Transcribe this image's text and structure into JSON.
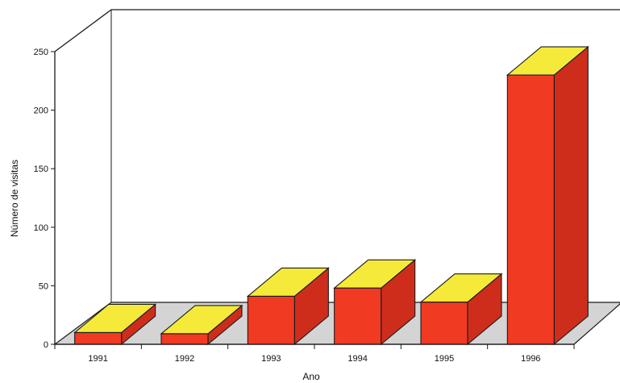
{
  "chart_data": {
    "type": "bar",
    "categories": [
      "1991",
      "1992",
      "1993",
      "1994",
      "1995",
      "1996"
    ],
    "values": [
      10,
      9,
      41,
      48,
      36,
      230
    ],
    "xlabel": "Ano",
    "ylabel": "Número de visitas",
    "ylim": [
      0,
      250
    ],
    "y_ticks": [
      0,
      50,
      100,
      150,
      200,
      250
    ],
    "grid": false,
    "style": "3d",
    "colors": {
      "front": "#f03a22",
      "side": "#cf2d1c",
      "top": "#f5ea3a",
      "floor": "#d4d4d4",
      "outline": "#1a1a1a"
    }
  }
}
